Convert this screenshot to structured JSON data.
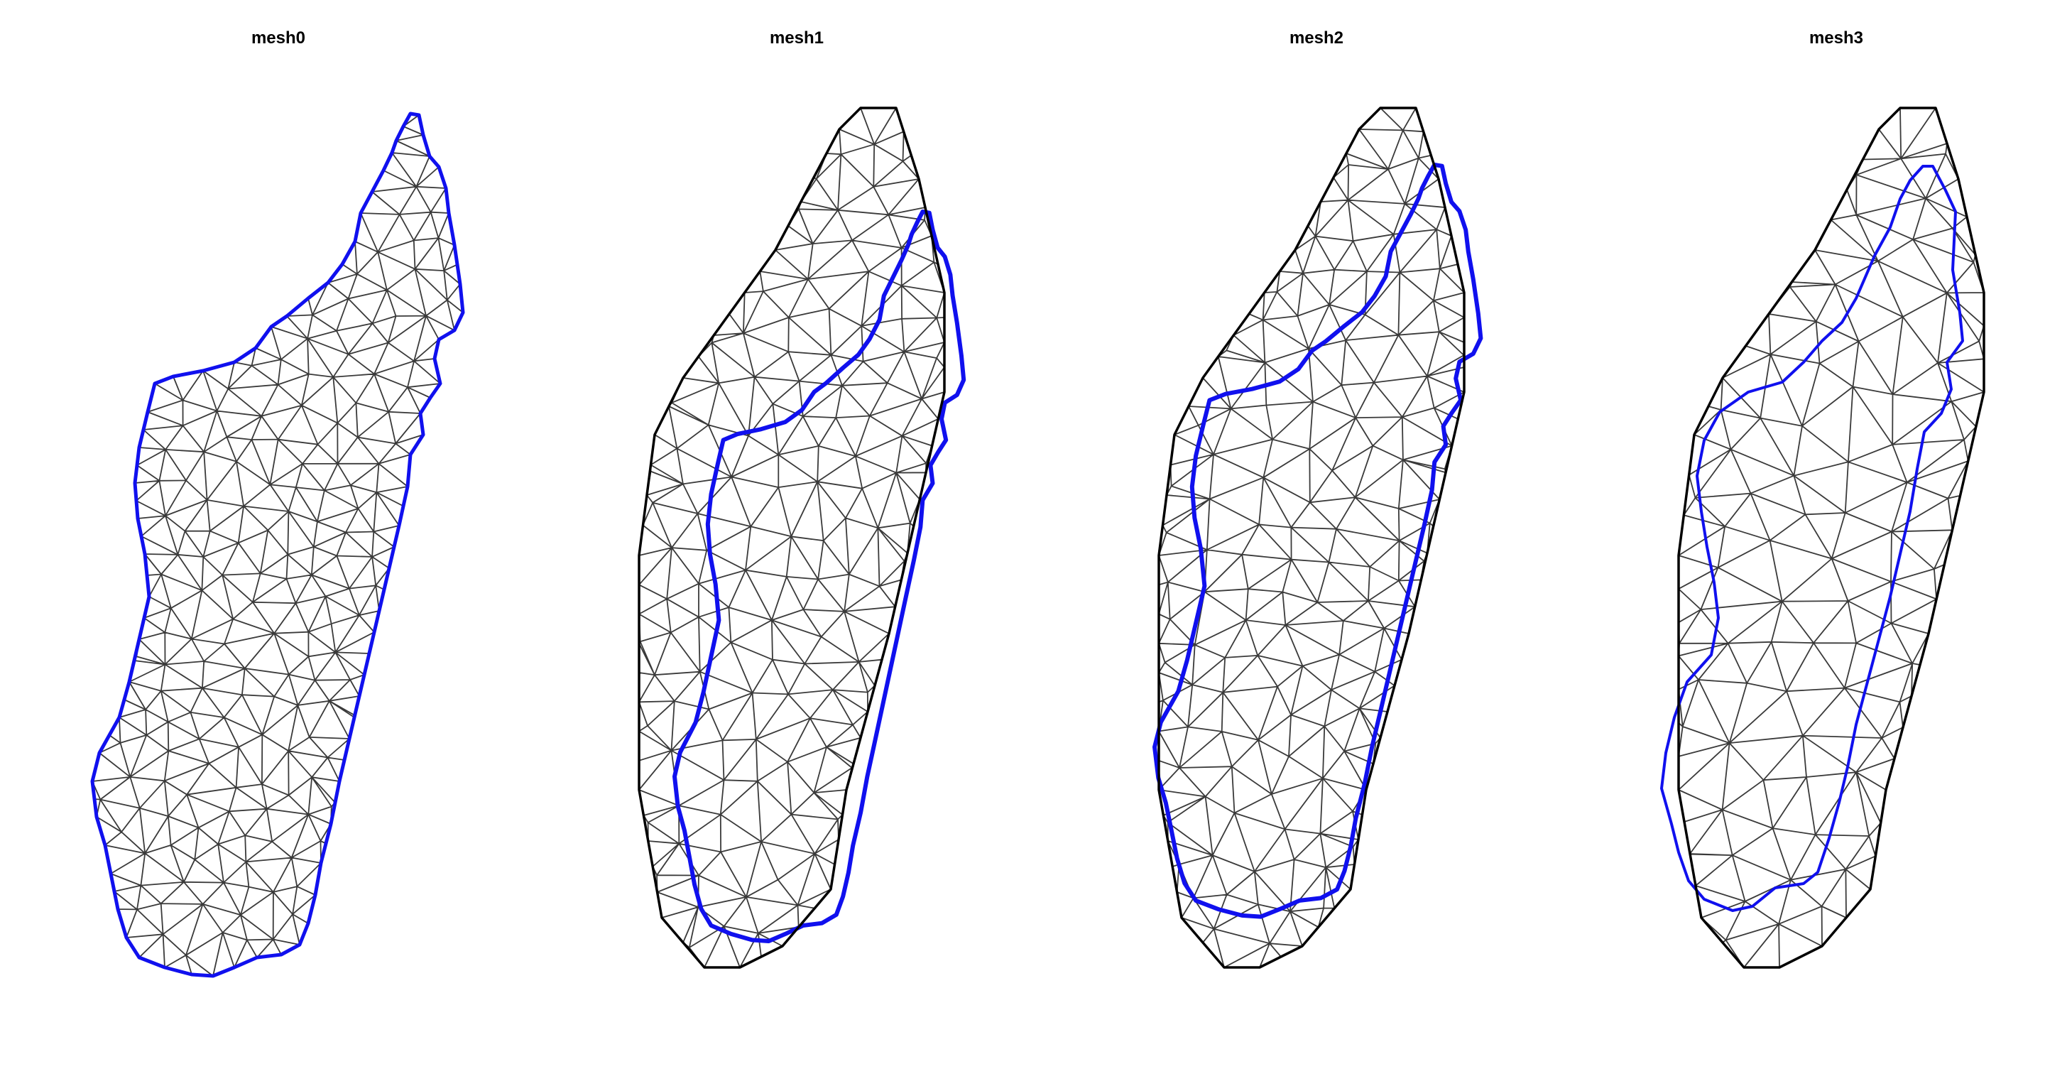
{
  "figure": {
    "panels": [
      {
        "title": "mesh0",
        "has_outer_hull": false,
        "coast_detail": "full",
        "mesh_density": "high"
      },
      {
        "title": "mesh1",
        "has_outer_hull": true,
        "coast_detail": "full",
        "mesh_density": "medium"
      },
      {
        "title": "mesh2",
        "has_outer_hull": true,
        "coast_detail": "full",
        "mesh_density": "medium"
      },
      {
        "title": "mesh3",
        "has_outer_hull": true,
        "coast_detail": "simplified",
        "mesh_density": "low"
      }
    ]
  },
  "colors": {
    "mesh_edge": "#3a3a3a",
    "outline": "#1010ee",
    "hull": "#000000",
    "background": "#ffffff"
  }
}
